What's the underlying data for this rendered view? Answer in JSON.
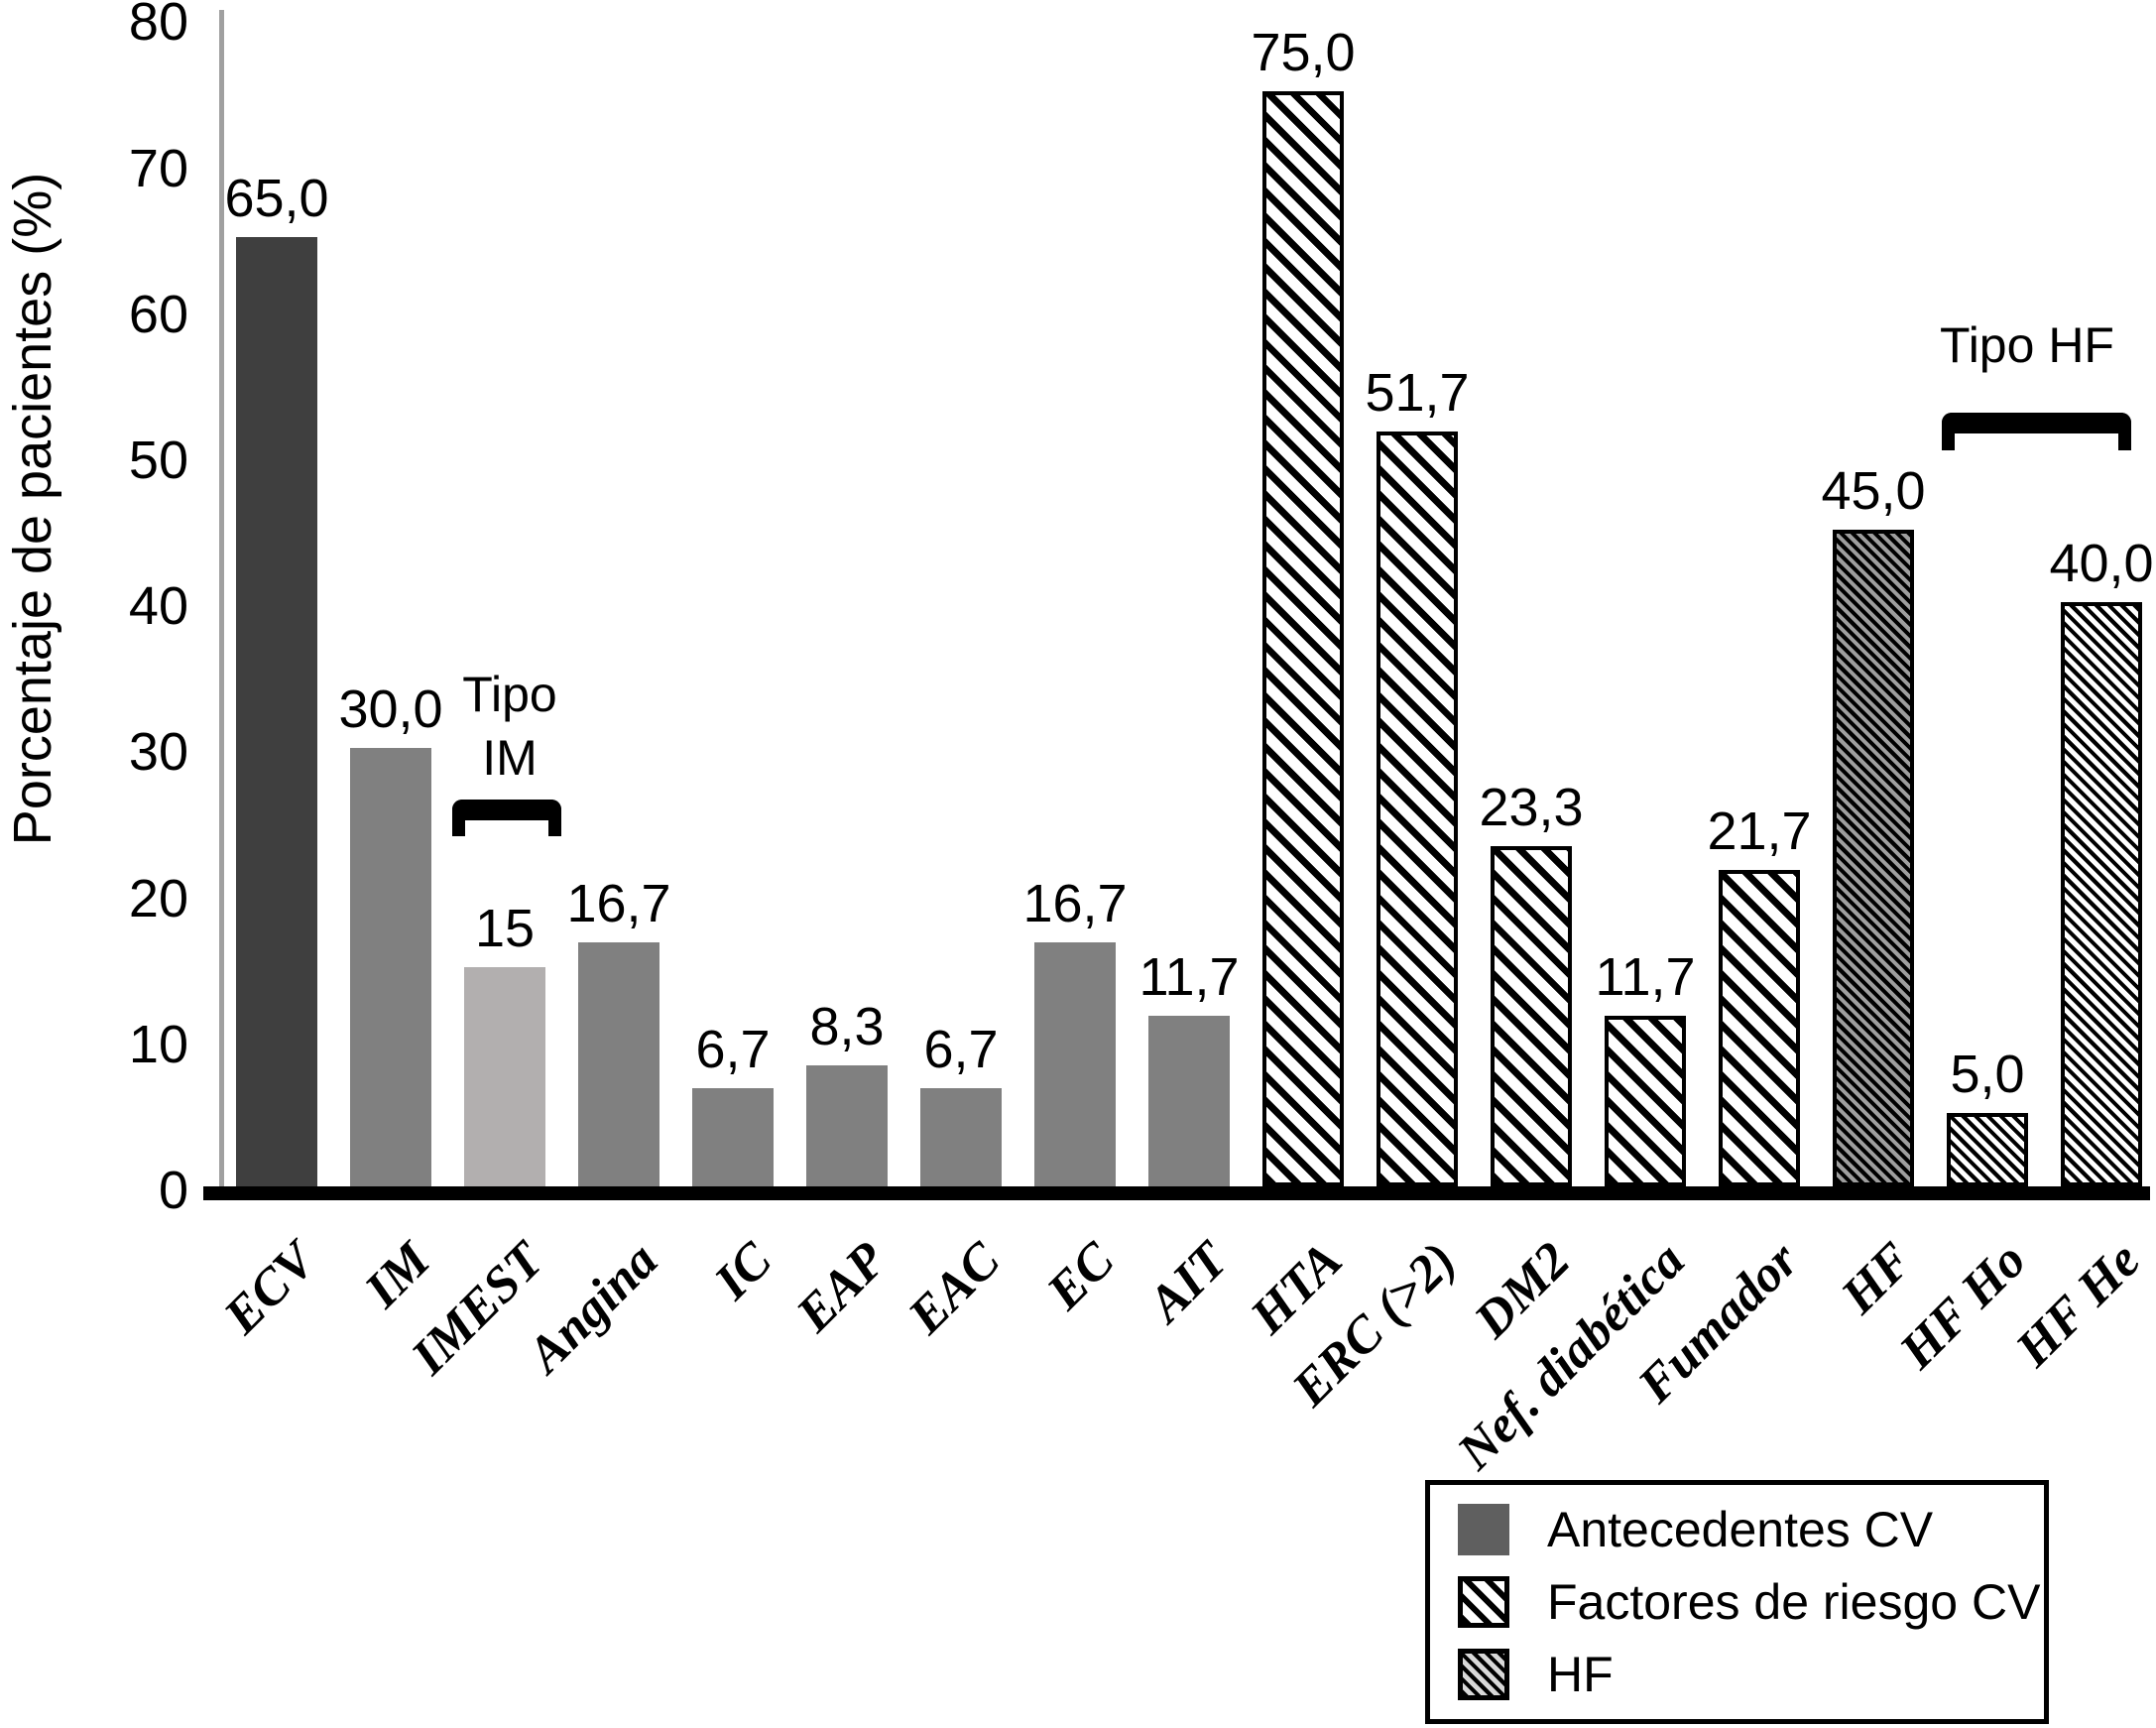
{
  "page": {
    "background": "#ffffff"
  },
  "chart_data": {
    "type": "bar",
    "title": "",
    "xlabel": "",
    "ylabel": "Porcentaje de pacientes (%)",
    "ylim": [
      0,
      80
    ],
    "yticks": [
      80,
      70,
      60,
      50,
      40,
      30,
      20,
      10,
      0
    ],
    "grid": false,
    "legend_position": "bottom-right",
    "categories": [
      "ECV",
      "IM",
      "IMEST",
      "Angina",
      "IC",
      "EAP",
      "EAC",
      "EC",
      "AIT",
      "HTA",
      "ERC (>2)",
      "DM2",
      "Nef. diabética",
      "Fumador",
      "HF",
      "HF Ho",
      "HF He"
    ],
    "bars": [
      {
        "category": "ECV",
        "value": 65.0,
        "label": "65,0",
        "series": "Antecedentes CV",
        "style": "solid-dark"
      },
      {
        "category": "IM",
        "value": 30.0,
        "label": "30,0",
        "series": "Antecedentes CV",
        "style": "solid-medium"
      },
      {
        "category": "IMEST",
        "value": 15.0,
        "label": "15",
        "series": "Antecedentes CV",
        "style": "solid-light"
      },
      {
        "category": "Angina",
        "value": 16.7,
        "label": "16,7",
        "series": "Antecedentes CV",
        "style": "solid-medium"
      },
      {
        "category": "IC",
        "value": 6.7,
        "label": "6,7",
        "series": "Antecedentes CV",
        "style": "solid-medium"
      },
      {
        "category": "EAP",
        "value": 8.3,
        "label": "8,3",
        "series": "Antecedentes CV",
        "style": "solid-medium"
      },
      {
        "category": "EAC",
        "value": 6.7,
        "label": "6,7",
        "series": "Antecedentes CV",
        "style": "solid-medium"
      },
      {
        "category": "EC",
        "value": 16.7,
        "label": "16,7",
        "series": "Antecedentes CV",
        "style": "solid-medium"
      },
      {
        "category": "AIT",
        "value": 11.7,
        "label": "11,7",
        "series": "Antecedentes CV",
        "style": "solid-medium"
      },
      {
        "category": "HTA",
        "value": 75.0,
        "label": "75,0",
        "series": "Factores de riesgo CV",
        "style": "stripe-wide"
      },
      {
        "category": "ERC (>2)",
        "value": 51.7,
        "label": "51,7",
        "series": "Factores de riesgo CV",
        "style": "stripe-wide"
      },
      {
        "category": "DM2",
        "value": 23.3,
        "label": "23,3",
        "series": "Factores de riesgo CV",
        "style": "stripe-wide"
      },
      {
        "category": "Nef. diabética",
        "value": 11.7,
        "label": "11,7",
        "series": "Factores de riesgo CV",
        "style": "stripe-wide"
      },
      {
        "category": "Fumador",
        "value": 21.7,
        "label": "21,7",
        "series": "Factores de riesgo CV",
        "style": "stripe-wide"
      },
      {
        "category": "HF",
        "value": 45.0,
        "label": "45,0",
        "series": "HF",
        "style": "stripe-fine-gray"
      },
      {
        "category": "HF Ho",
        "value": 5.0,
        "label": "5,0",
        "series": "HF",
        "style": "stripe-fine-white"
      },
      {
        "category": "HF He",
        "value": 40.0,
        "label": "40,0",
        "series": "HF",
        "style": "stripe-fine-white"
      }
    ],
    "styles": {
      "solid-dark": {
        "fill": "#3f3f3f"
      },
      "solid-medium": {
        "fill": "#808080"
      },
      "solid-light": {
        "fill": "#b2afaf"
      },
      "stripe-wide": {
        "fg": "#000000",
        "bg": "#ffffff",
        "line": 7,
        "pitch": 18,
        "border": 4
      },
      "stripe-fine-gray": {
        "fg": "#000000",
        "bg": "#9e9e9e",
        "line": 4,
        "pitch": 8,
        "border": 4
      },
      "stripe-fine-white": {
        "fg": "#000000",
        "bg": "#ffffff",
        "line": 4,
        "pitch": 9,
        "border": 4
      },
      "legend-solid": {
        "fill": "#5f5f5f"
      },
      "legend-stripe-wide": {
        "fg": "#000000",
        "bg": "#ffffff",
        "line": 6,
        "pitch": 15,
        "border": 5
      },
      "legend-stripe-fine": {
        "fg": "#000000",
        "bg": "#d8d8d8",
        "line": 4,
        "pitch": 9,
        "border": 5
      }
    },
    "annotations": [
      {
        "id": "tipo-im",
        "lines": [
          "Tipo",
          "IM"
        ],
        "bars": [
          "IMEST"
        ]
      },
      {
        "id": "tipo-hf",
        "lines": [
          "Tipo HF"
        ],
        "bars": [
          "HF Ho",
          "HF He"
        ]
      }
    ]
  },
  "legend": {
    "items": [
      {
        "label": "Antecedentes CV",
        "style": "legend-solid"
      },
      {
        "label": "Factores de riesgo CV",
        "style": "legend-stripe-wide"
      },
      {
        "label": "HF",
        "style": "legend-stripe-fine"
      }
    ]
  }
}
